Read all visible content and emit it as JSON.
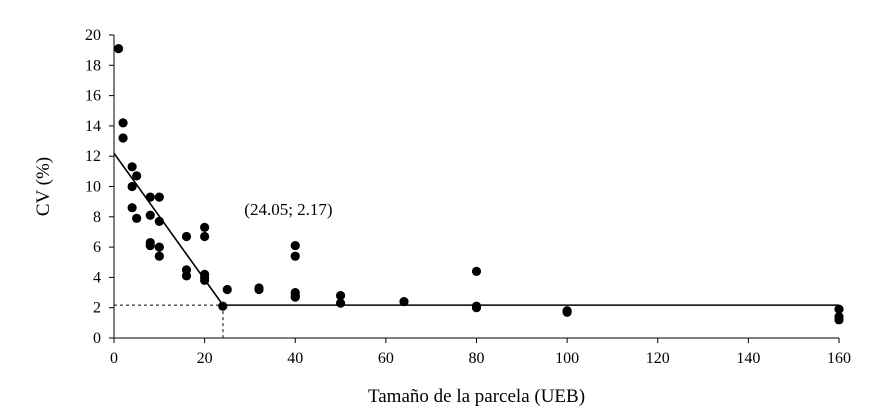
{
  "chart_data": {
    "type": "scatter",
    "title": "",
    "xlabel": "Tamaño de la parcela (UEB)",
    "ylabel": "CV (%)",
    "xlim": [
      0,
      160
    ],
    "ylim": [
      0,
      20
    ],
    "xticks": [
      0,
      20,
      40,
      60,
      80,
      100,
      120,
      140,
      160
    ],
    "yticks": [
      0,
      2,
      4,
      6,
      8,
      10,
      12,
      14,
      16,
      18,
      20
    ],
    "grid": false,
    "legend": "none",
    "marker_color": "#000000",
    "points": [
      [
        1,
        19.1
      ],
      [
        2,
        14.2
      ],
      [
        2,
        13.2
      ],
      [
        4,
        11.3
      ],
      [
        4,
        10.0
      ],
      [
        4,
        8.6
      ],
      [
        5,
        10.7
      ],
      [
        5,
        7.9
      ],
      [
        8,
        9.3
      ],
      [
        8,
        8.1
      ],
      [
        8,
        6.3
      ],
      [
        8,
        6.1
      ],
      [
        10,
        9.3
      ],
      [
        10,
        7.7
      ],
      [
        10,
        6.0
      ],
      [
        10,
        5.4
      ],
      [
        16,
        6.7
      ],
      [
        16,
        4.5
      ],
      [
        16,
        4.1
      ],
      [
        20,
        7.3
      ],
      [
        20,
        6.7
      ],
      [
        20,
        4.2
      ],
      [
        20,
        4.0
      ],
      [
        20,
        3.8
      ],
      [
        24,
        2.1
      ],
      [
        25,
        3.2
      ],
      [
        32,
        3.3
      ],
      [
        32,
        3.2
      ],
      [
        40,
        6.1
      ],
      [
        40,
        5.4
      ],
      [
        40,
        3.0
      ],
      [
        40,
        2.8
      ],
      [
        40,
        2.7
      ],
      [
        50,
        2.8
      ],
      [
        50,
        2.3
      ],
      [
        64,
        2.4
      ],
      [
        80,
        4.4
      ],
      [
        80,
        2.1
      ],
      [
        80,
        2.0
      ],
      [
        100,
        1.8
      ],
      [
        100,
        1.7
      ],
      [
        160,
        1.9
      ],
      [
        160,
        1.4
      ],
      [
        160,
        1.2
      ]
    ],
    "fit": {
      "segments": [
        {
          "x": [
            0,
            24.05
          ],
          "y": [
            12.2,
            2.17
          ]
        },
        {
          "x": [
            24.05,
            160
          ],
          "y": [
            2.17,
            2.17
          ]
        }
      ],
      "breakpoint": {
        "x": 24.05,
        "y": 2.17
      }
    },
    "annotation": {
      "text": "(24.05; 2.17)",
      "x": 38.5,
      "y": 8.0
    }
  }
}
